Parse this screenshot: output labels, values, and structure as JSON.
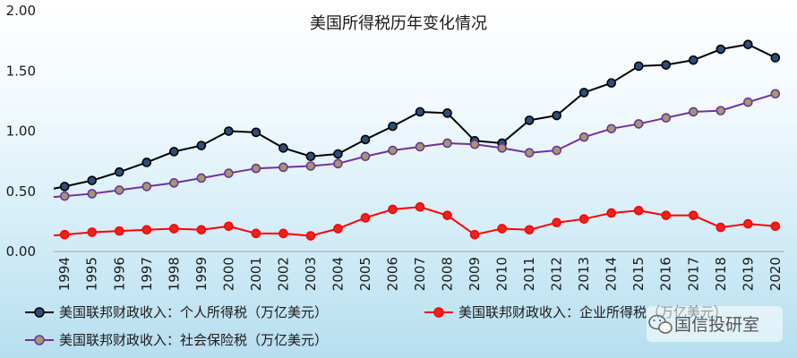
{
  "chart_data": {
    "type": "line",
    "title": "美国所得税历年变化情况",
    "xlabel": "",
    "ylabel": "",
    "x": [
      "1994",
      "1995",
      "1996",
      "1997",
      "1998",
      "1999",
      "2000",
      "2001",
      "2002",
      "2003",
      "2004",
      "2005",
      "2006",
      "2007",
      "2008",
      "2009",
      "2010",
      "2011",
      "2012",
      "2013",
      "2014",
      "2015",
      "2016",
      "2017",
      "2018",
      "2019",
      "2020"
    ],
    "ylim": [
      0,
      2
    ],
    "yticks": [
      "0.00",
      "0.50",
      "1.00",
      "1.50",
      "2.00"
    ],
    "grid": false,
    "legend_position": "bottom",
    "series": [
      {
        "name": "美国联邦财政收入：个人所得税（万亿美元）",
        "color": "#000000",
        "marker_color": "#2b4f7a",
        "values": [
          0.54,
          0.59,
          0.66,
          0.74,
          0.83,
          0.88,
          1.0,
          0.99,
          0.86,
          0.79,
          0.81,
          0.93,
          1.04,
          1.16,
          1.15,
          0.92,
          0.9,
          1.09,
          1.13,
          1.32,
          1.4,
          1.54,
          1.55,
          1.59,
          1.68,
          1.72,
          1.61
        ]
      },
      {
        "name": "美国联邦财政收入：企业所得税（万亿美元）",
        "color": "#ff0000",
        "marker_color": "#e8251e",
        "values": [
          0.14,
          0.16,
          0.17,
          0.18,
          0.19,
          0.18,
          0.21,
          0.15,
          0.15,
          0.13,
          0.19,
          0.28,
          0.35,
          0.37,
          0.3,
          0.14,
          0.19,
          0.18,
          0.24,
          0.27,
          0.32,
          0.34,
          0.3,
          0.3,
          0.2,
          0.23,
          0.21
        ]
      },
      {
        "name": "美国联邦财政收入：社会保险税（万亿美元）",
        "color": "#7030a0",
        "marker_color": "#9f9a6b",
        "values": [
          0.46,
          0.48,
          0.51,
          0.54,
          0.57,
          0.61,
          0.65,
          0.69,
          0.7,
          0.71,
          0.73,
          0.79,
          0.84,
          0.87,
          0.9,
          0.89,
          0.86,
          0.82,
          0.84,
          0.95,
          1.02,
          1.06,
          1.11,
          1.16,
          1.17,
          1.24,
          1.31
        ]
      }
    ]
  },
  "watermark": {
    "text": "国信投研室",
    "icon": "wechat-icon"
  }
}
